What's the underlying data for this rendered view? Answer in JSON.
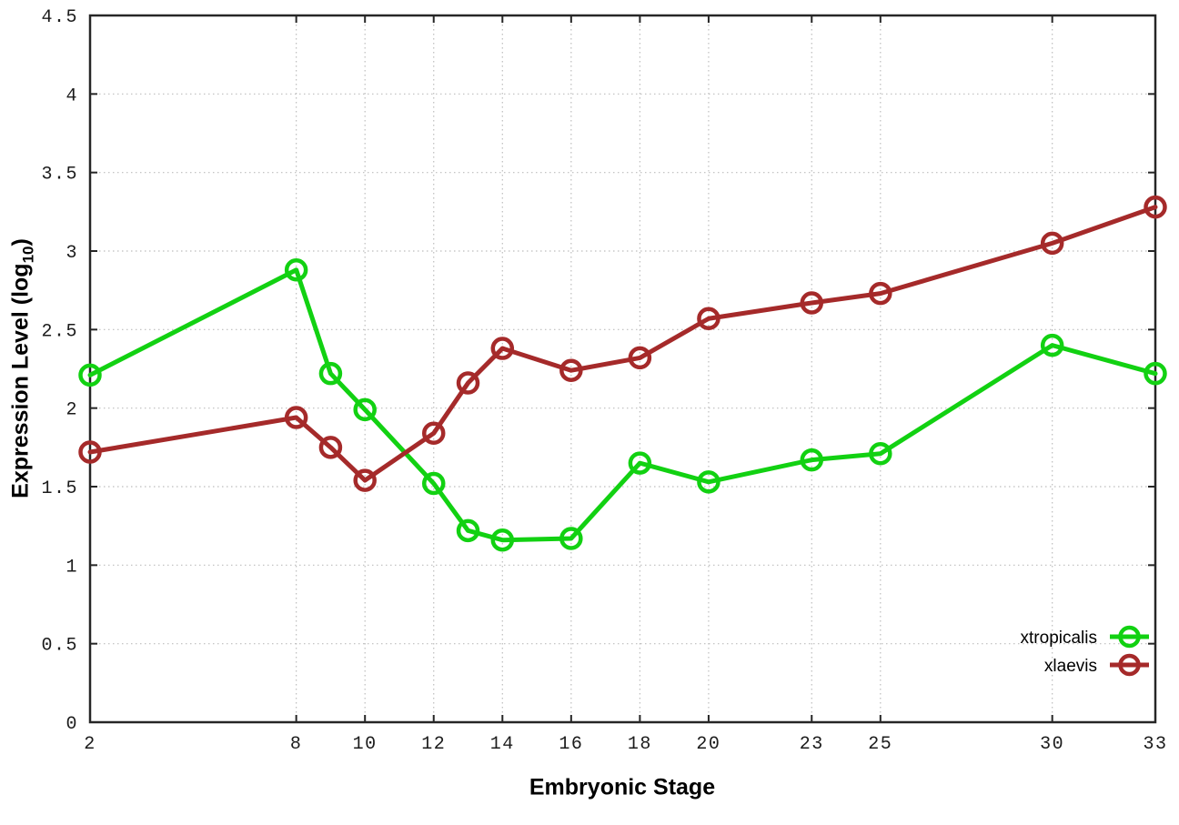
{
  "chart_data": {
    "type": "line",
    "title": "",
    "xlabel": "Embryonic Stage",
    "ylabel": {
      "text": "Expression Level (log",
      "sub": "10",
      "suffix": ")"
    },
    "x": [
      2,
      8,
      9,
      10,
      12,
      13,
      14,
      16,
      18,
      20,
      23,
      25,
      30,
      33
    ],
    "xticks": [
      2,
      8,
      10,
      12,
      14,
      16,
      18,
      20,
      23,
      25,
      30,
      33
    ],
    "yticks": [
      0,
      0.5,
      1,
      1.5,
      2,
      2.5,
      3,
      3.5,
      4,
      4.5
    ],
    "xlim": [
      2,
      33
    ],
    "ylim": [
      0,
      4.5
    ],
    "grid": true,
    "legend_position": "bottom-right-inside",
    "series": [
      {
        "name": "xtropicalis",
        "color": "#12d112",
        "values": [
          2.21,
          2.88,
          2.22,
          1.99,
          1.52,
          1.22,
          1.16,
          1.17,
          1.65,
          1.53,
          1.67,
          1.71,
          2.4,
          2.22
        ]
      },
      {
        "name": "xlaevis",
        "color": "#a52a2a",
        "values": [
          1.72,
          1.94,
          1.75,
          1.54,
          1.84,
          2.16,
          2.38,
          2.24,
          2.32,
          2.57,
          2.67,
          2.73,
          3.05,
          3.28
        ]
      }
    ]
  },
  "colors": {
    "grid": "#bdbdbd",
    "axis": "#262626",
    "text": "#000000",
    "background": "#ffffff"
  }
}
